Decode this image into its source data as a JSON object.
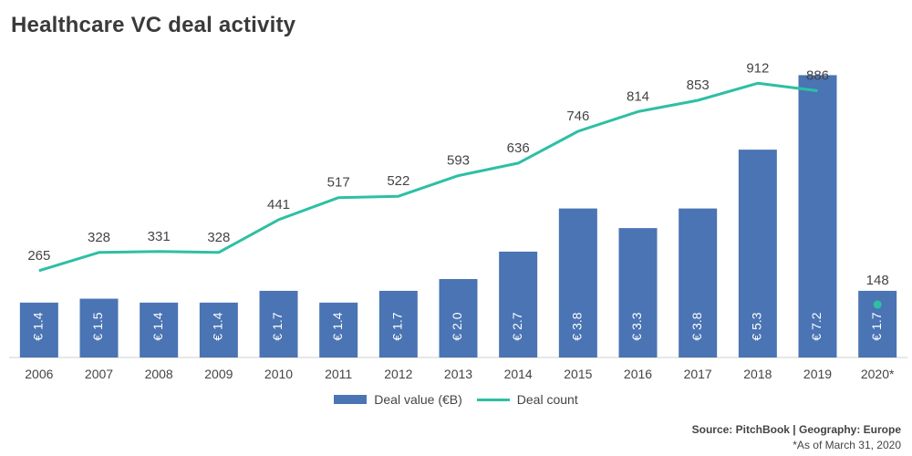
{
  "title": "Healthcare VC deal activity",
  "legend": {
    "bar_label": "Deal value (€B)",
    "line_label": "Deal count"
  },
  "source": {
    "line1": "Source: PitchBook | Geography: Europe",
    "line2": "*As of March 31, 2020"
  },
  "colors": {
    "bar": "#4a74b3",
    "line": "#2ebfa5",
    "text": "#444444"
  },
  "chart_data": {
    "type": "bar",
    "categories": [
      "2006",
      "2007",
      "2008",
      "2009",
      "2010",
      "2011",
      "2012",
      "2013",
      "2014",
      "2015",
      "2016",
      "2017",
      "2018",
      "2019",
      "2020*"
    ],
    "series": [
      {
        "name": "Deal value (€B)",
        "type": "bar",
        "values": [
          1.4,
          1.5,
          1.4,
          1.4,
          1.7,
          1.4,
          1.7,
          2.0,
          2.7,
          3.8,
          3.3,
          3.8,
          5.3,
          7.2,
          1.7
        ],
        "labels": [
          "€ 1.4",
          "€ 1.5",
          "€ 1.4",
          "€ 1.4",
          "€ 1.7",
          "€ 1.4",
          "€ 1.7",
          "€ 2.0",
          "€ 2.7",
          "€ 3.8",
          "€ 3.3",
          "€ 3.8",
          "€ 5.3",
          "€ 7.2",
          "€ 1.7"
        ]
      },
      {
        "name": "Deal count",
        "type": "line",
        "values": [
          265,
          328,
          331,
          328,
          441,
          517,
          522,
          593,
          636,
          746,
          814,
          853,
          912,
          886,
          148
        ],
        "line_points": 14,
        "final_point_marker_only": true
      }
    ],
    "grid": false
  }
}
